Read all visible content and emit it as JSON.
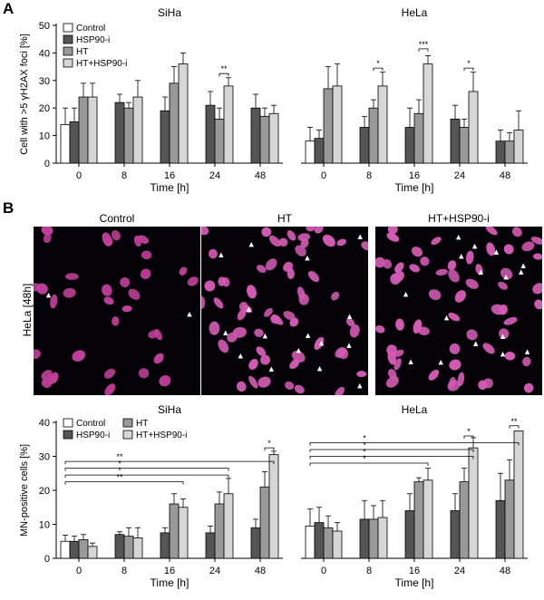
{
  "panel_letters": {
    "a": "A",
    "b": "B"
  },
  "micrographs": {
    "row_label": "HeLa [48h]",
    "titles": [
      "Control",
      "HT",
      "HT+HSP90-i"
    ],
    "arrow_glyph": "▲"
  },
  "colors": {
    "control": "#ffffff",
    "hsp90": "#555555",
    "ht": "#999999",
    "ht_hsp90": "#d6d6d6",
    "nucleus": "#c2409c",
    "nucleus_fill": "#d55bb5"
  },
  "chart_data": [
    {
      "id": "A-SiHa",
      "type": "bar",
      "title": "SiHa",
      "ylabel": "Cell with >5 γH2AX foci [%]",
      "xlabel": "Time [h]",
      "ylim": [
        0,
        50
      ],
      "yticks": [
        0,
        10,
        20,
        30,
        40,
        50
      ],
      "categories": [
        "0",
        "8",
        "16",
        "24",
        "48"
      ],
      "legend_rows": 4,
      "show_yaxis": true,
      "series": [
        {
          "name": "Control",
          "values": [
            14,
            null,
            null,
            null,
            null
          ],
          "errors": [
            6,
            null,
            null,
            null,
            null
          ]
        },
        {
          "name": "HSP90-i",
          "values": [
            15,
            22,
            19,
            21,
            20
          ],
          "errors": [
            5,
            3,
            5,
            5,
            5
          ]
        },
        {
          "name": "HT",
          "values": [
            24,
            20,
            29,
            16,
            17
          ],
          "errors": [
            5,
            2,
            6,
            4,
            3
          ]
        },
        {
          "name": "HT+HSP90-i",
          "values": [
            24,
            24,
            36,
            28,
            18
          ],
          "errors": [
            5,
            6,
            4,
            3,
            3
          ]
        }
      ],
      "significance": [
        {
          "label": "**",
          "group": 3,
          "from": 2,
          "to": 3,
          "y": 32.5
        }
      ]
    },
    {
      "id": "A-HeLa",
      "type": "bar",
      "title": "HeLa",
      "ylabel": "",
      "xlabel": "Time [h]",
      "ylim": [
        0,
        50
      ],
      "yticks": [
        0,
        10,
        20,
        30,
        40,
        50
      ],
      "categories": [
        "0",
        "8",
        "16",
        "24",
        "48"
      ],
      "legend_rows": 0,
      "show_yaxis": false,
      "series": [
        {
          "name": "Control",
          "values": [
            8,
            null,
            null,
            null,
            null
          ],
          "errors": [
            5,
            null,
            null,
            null,
            null
          ]
        },
        {
          "name": "HSP90-i",
          "values": [
            9,
            13,
            13,
            16,
            8
          ],
          "errors": [
            3,
            4,
            7,
            5,
            4
          ]
        },
        {
          "name": "HT",
          "values": [
            27,
            20,
            18,
            13,
            8
          ],
          "errors": [
            8,
            3,
            5,
            3,
            3
          ]
        },
        {
          "name": "HT+HSP90-i",
          "values": [
            28,
            28,
            36,
            26,
            12
          ],
          "errors": [
            8,
            5,
            3,
            7,
            7
          ]
        }
      ],
      "significance": [
        {
          "label": "*",
          "group": 1,
          "from": 2,
          "to": 3,
          "y": 34.5
        },
        {
          "label": "***",
          "group": 2,
          "from": 2,
          "to": 3,
          "y": 41.5
        },
        {
          "label": "*",
          "group": 3,
          "from": 2,
          "to": 3,
          "y": 34.5
        }
      ]
    },
    {
      "id": "B-SiHa",
      "type": "bar",
      "title": "SiHa",
      "ylabel": "MN-positive cells [%]",
      "xlabel": "Time [h]",
      "ylim": [
        0,
        40
      ],
      "yticks": [
        0,
        10,
        20,
        30,
        40
      ],
      "categories": [
        "0",
        "8",
        "16",
        "24",
        "48"
      ],
      "legend_rows": 2,
      "show_yaxis": true,
      "series": [
        {
          "name": "Control",
          "values": [
            5,
            null,
            null,
            null,
            null
          ],
          "errors": [
            1.8,
            null,
            null,
            null,
            null
          ]
        },
        {
          "name": "HSP90-i",
          "values": [
            5,
            7,
            7.5,
            7.5,
            9
          ],
          "errors": [
            1.5,
            0.8,
            1.5,
            2,
            2.5
          ]
        },
        {
          "name": "HT",
          "values": [
            5.5,
            6.5,
            16,
            16,
            21
          ],
          "errors": [
            1.5,
            2.5,
            3,
            3.5,
            4.5
          ]
        },
        {
          "name": "HT+HSP90-i",
          "values": [
            3.5,
            6,
            15,
            19,
            30.5
          ],
          "errors": [
            1,
            3,
            2.5,
            4.5,
            1
          ]
        }
      ],
      "significance": [
        {
          "label": "*",
          "group": 4,
          "from": 2,
          "to": 3,
          "y": 32.5
        }
      ],
      "comparisons": [
        {
          "label": "**",
          "level": 28.5,
          "to_group": 4
        },
        {
          "label": "*",
          "level": 26.5,
          "to_group": 3
        },
        {
          "label": "*",
          "level": 24.5,
          "to_group": 3
        },
        {
          "label": "**",
          "level": 22.5,
          "to_group": 2
        }
      ]
    },
    {
      "id": "B-HeLa",
      "type": "bar",
      "title": "HeLa",
      "ylabel": "",
      "xlabel": "Time [h]",
      "ylim": [
        0,
        40
      ],
      "yticks": [
        0,
        10,
        20,
        30,
        40
      ],
      "categories": [
        "0",
        "8",
        "16",
        "24",
        "48"
      ],
      "legend_rows": 0,
      "show_yaxis": false,
      "series": [
        {
          "name": "Control",
          "values": [
            9.5,
            null,
            null,
            null,
            null
          ],
          "errors": [
            5,
            null,
            null,
            null,
            null
          ]
        },
        {
          "name": "HSP90-i",
          "values": [
            10.5,
            11.5,
            14,
            14,
            17
          ],
          "errors": [
            4.5,
            5.5,
            5,
            5,
            8
          ]
        },
        {
          "name": "HT",
          "values": [
            9,
            11.5,
            22.5,
            22.5,
            23
          ],
          "errors": [
            3.5,
            4,
            1.2,
            4,
            6
          ]
        },
        {
          "name": "HT+HSP90-i",
          "values": [
            8,
            12,
            23,
            32.5,
            37.5
          ],
          "errors": [
            2.5,
            5,
            3.5,
            3,
            0
          ]
        }
      ],
      "significance": [
        {
          "label": "*",
          "group": 3,
          "from": 2,
          "to": 3,
          "y": 36
        },
        {
          "label": "**",
          "group": 4,
          "from": 2,
          "to": 3,
          "y": 39
        }
      ],
      "comparisons": [
        {
          "label": "*",
          "level": 34,
          "to_group": 4
        },
        {
          "label": "*",
          "level": 32,
          "to_group": 3
        },
        {
          "label": "*",
          "level": 30,
          "to_group": 3
        },
        {
          "label": "*",
          "level": 28,
          "to_group": 2
        }
      ]
    }
  ]
}
